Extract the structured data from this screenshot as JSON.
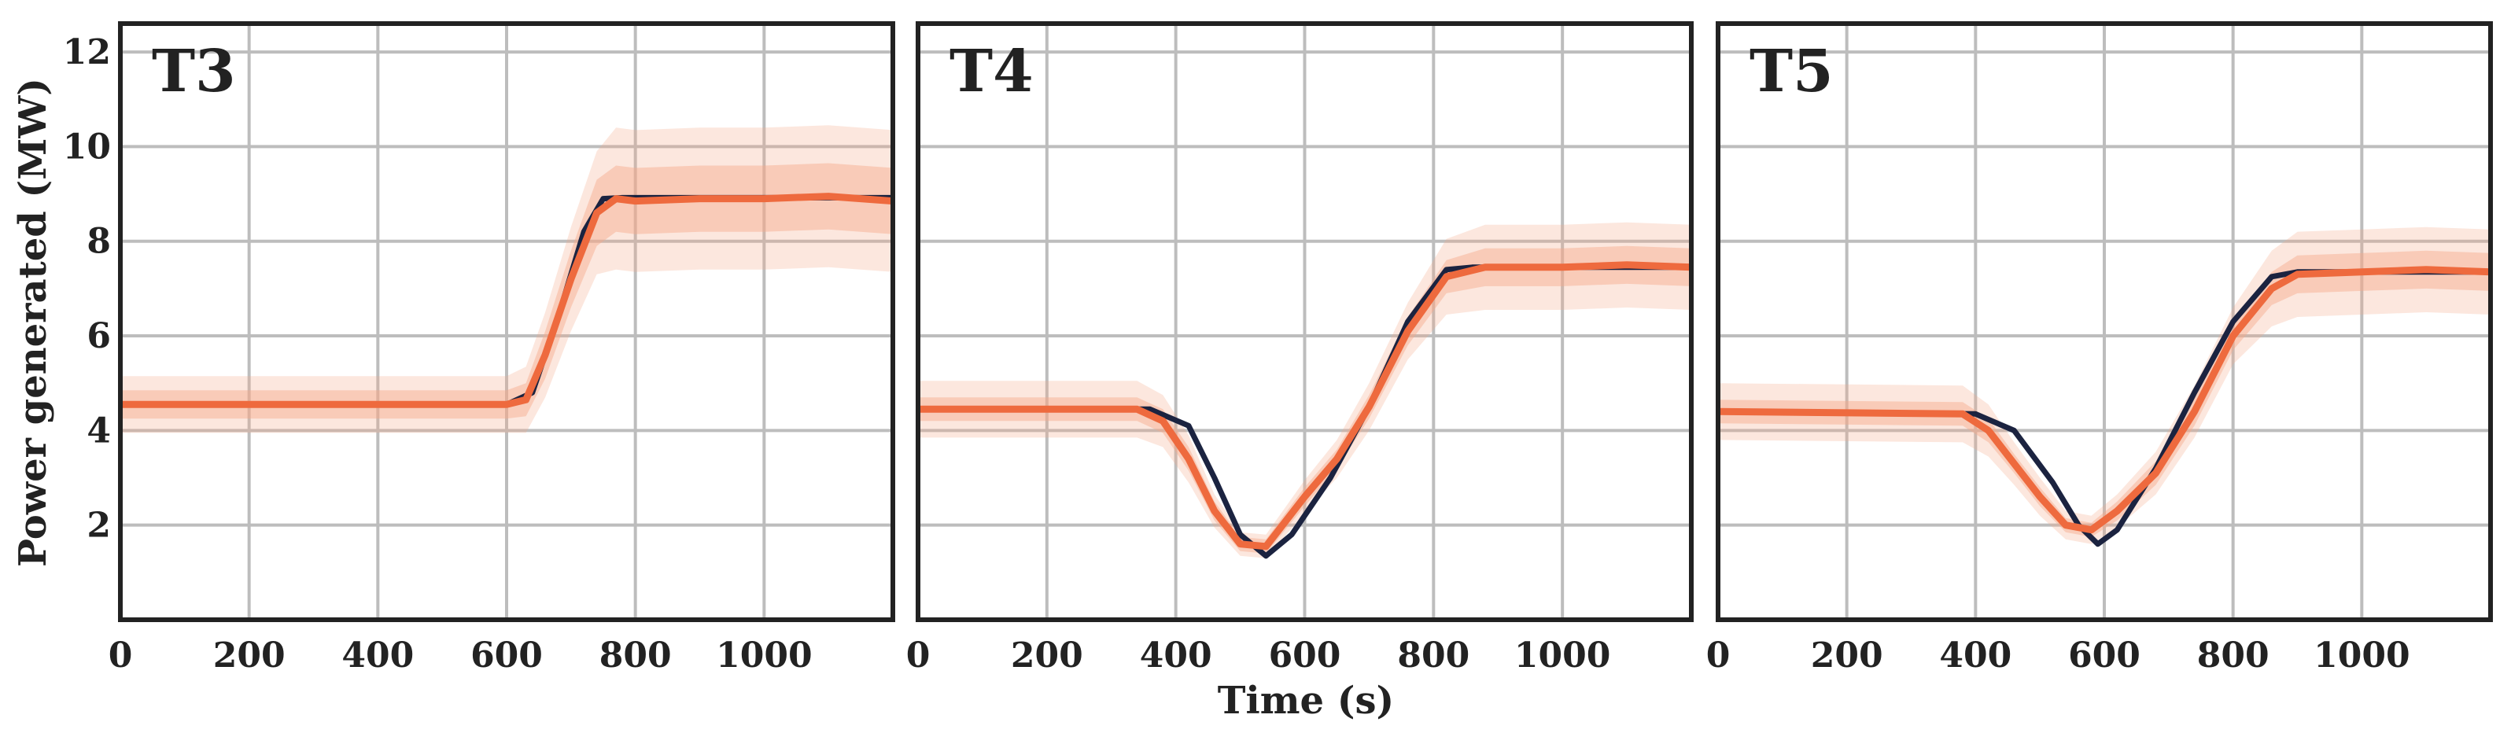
{
  "chart_data": {
    "type": "line",
    "shared": {
      "xlabel": "Time (s)",
      "ylabel": "Power generated (MW)",
      "xlim": [
        0,
        1200
      ],
      "ylim": [
        0,
        12.6
      ],
      "xticks": [
        0,
        200,
        400,
        600,
        800,
        1000
      ],
      "yticks": [
        2,
        4,
        6,
        8,
        10,
        12
      ],
      "grid": true
    },
    "colors": {
      "reference": "#1b2340",
      "estimate": "#ee6a3e",
      "band": "#f6a98a",
      "frame": "#222222",
      "grid": "#bdbdbd"
    },
    "panels": [
      {
        "title": "T3",
        "reference": {
          "x": [
            0,
            600,
            640,
            680,
            720,
            750,
            780,
            1200
          ],
          "y": [
            4.55,
            4.55,
            4.8,
            6.4,
            8.2,
            8.9,
            8.92,
            8.92
          ]
        },
        "estimate": {
          "x": [
            0,
            600,
            630,
            660,
            700,
            740,
            770,
            800,
            900,
            1000,
            1100,
            1200
          ],
          "y": [
            4.55,
            4.55,
            4.65,
            5.6,
            7.2,
            8.6,
            8.9,
            8.85,
            8.9,
            8.9,
            8.95,
            8.85
          ]
        },
        "band_inner": [
          0.3,
          0.3,
          0.35,
          0.5,
          0.6,
          0.7,
          0.7,
          0.7,
          0.7,
          0.7,
          0.7,
          0.7
        ],
        "band_outer": [
          0.6,
          0.6,
          0.7,
          0.9,
          1.1,
          1.3,
          1.5,
          1.5,
          1.5,
          1.5,
          1.5,
          1.5
        ]
      },
      {
        "title": "T4",
        "reference": {
          "x": [
            0,
            360,
            420,
            460,
            500,
            540,
            580,
            640,
            700,
            760,
            820,
            860,
            1200
          ],
          "y": [
            4.45,
            4.45,
            4.1,
            3.0,
            1.8,
            1.35,
            1.8,
            3.0,
            4.5,
            6.3,
            7.4,
            7.45,
            7.45
          ]
        },
        "estimate": {
          "x": [
            0,
            340,
            380,
            420,
            460,
            500,
            540,
            600,
            650,
            700,
            760,
            820,
            880,
            1000,
            1100,
            1200
          ],
          "y": [
            4.45,
            4.45,
            4.2,
            3.4,
            2.3,
            1.6,
            1.55,
            2.6,
            3.4,
            4.5,
            6.1,
            7.25,
            7.45,
            7.45,
            7.5,
            7.45
          ]
        },
        "band_inner": [
          0.25,
          0.25,
          0.25,
          0.25,
          0.2,
          0.15,
          0.15,
          0.2,
          0.2,
          0.25,
          0.3,
          0.35,
          0.4,
          0.4,
          0.4,
          0.4
        ],
        "band_outer": [
          0.6,
          0.6,
          0.55,
          0.5,
          0.35,
          0.25,
          0.25,
          0.35,
          0.4,
          0.5,
          0.6,
          0.8,
          0.9,
          0.9,
          0.9,
          0.9
        ]
      },
      {
        "title": "T5",
        "reference": {
          "x": [
            0,
            400,
            460,
            520,
            560,
            590,
            620,
            680,
            740,
            800,
            860,
            900,
            1200
          ],
          "y": [
            4.4,
            4.35,
            4.0,
            2.9,
            2.0,
            1.6,
            1.9,
            3.2,
            4.8,
            6.3,
            7.25,
            7.35,
            7.35
          ]
        },
        "estimate": {
          "x": [
            0,
            380,
            420,
            460,
            500,
            540,
            580,
            620,
            680,
            740,
            800,
            860,
            900,
            1000,
            1100,
            1200
          ],
          "y": [
            4.4,
            4.35,
            4.0,
            3.3,
            2.6,
            2.0,
            1.9,
            2.3,
            3.1,
            4.4,
            6.0,
            7.0,
            7.3,
            7.35,
            7.4,
            7.35
          ]
        },
        "band_inner": [
          0.25,
          0.25,
          0.25,
          0.2,
          0.2,
          0.15,
          0.15,
          0.2,
          0.25,
          0.3,
          0.3,
          0.35,
          0.4,
          0.4,
          0.4,
          0.4
        ],
        "band_outer": [
          0.6,
          0.6,
          0.55,
          0.45,
          0.4,
          0.3,
          0.3,
          0.35,
          0.45,
          0.55,
          0.6,
          0.8,
          0.9,
          0.9,
          0.9,
          0.9
        ]
      }
    ]
  }
}
